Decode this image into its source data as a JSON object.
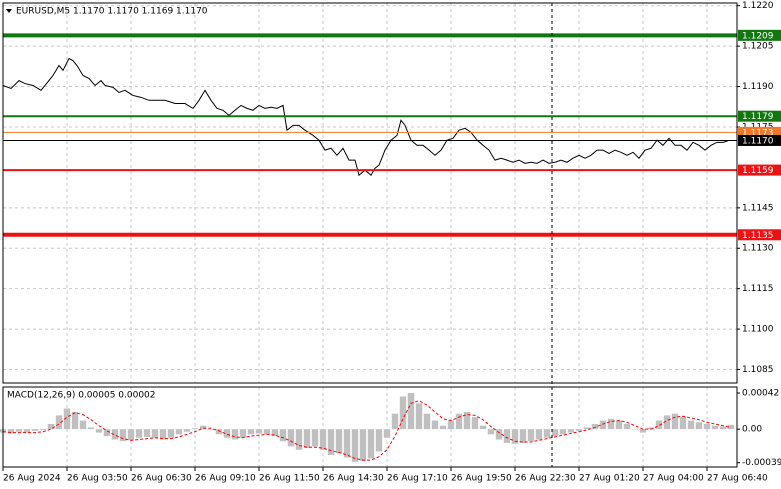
{
  "chart_data": [
    {
      "type": "line",
      "title": "EURUSD,M5  1.1170 1.1170 1.1169 1.1170",
      "x": [
        0,
        4,
        8,
        11,
        15,
        19,
        21,
        25,
        28,
        30,
        33,
        35,
        37,
        40,
        43,
        46,
        49,
        51,
        55,
        58,
        61,
        65,
        69,
        73,
        77,
        81,
        86,
        91,
        95,
        98,
        101,
        104,
        107,
        110,
        113,
        116,
        119,
        122,
        125,
        128,
        131,
        134,
        137,
        140,
        142,
        145,
        148,
        151,
        155,
        158,
        161,
        164,
        167,
        170,
        173,
        176,
        178,
        181,
        184,
        186,
        188,
        191,
        194,
        197,
        199,
        201,
        204,
        207,
        210,
        213,
        216,
        219,
        222,
        225,
        228,
        231,
        234,
        237,
        240,
        243,
        246,
        249,
        252,
        255,
        258,
        261,
        264,
        267,
        270,
        273,
        276,
        279,
        282,
        285,
        288,
        291,
        294,
        297,
        300,
        303,
        306,
        309,
        312,
        315,
        318,
        321,
        324,
        327,
        330,
        333,
        336,
        339,
        342,
        345,
        348,
        351,
        354,
        357,
        360,
        363
      ],
      "series": [
        {
          "color": "#000000",
          "values": [
            1.11904,
            1.11893,
            1.11922,
            1.11911,
            1.11904,
            1.11886,
            1.11904,
            1.11941,
            1.11978,
            1.1196,
            1.12004,
            1.11996,
            1.11978,
            1.11941,
            1.1193,
            1.11904,
            1.11922,
            1.11904,
            1.11897,
            1.11878,
            1.11886,
            1.11867,
            1.1186,
            1.11849,
            1.11849,
            1.11849,
            1.11837,
            1.11837,
            1.11819,
            1.11849,
            1.11886,
            1.11849,
            1.11819,
            1.11812,
            1.11793,
            1.11812,
            1.1183,
            1.11819,
            1.11812,
            1.1183,
            1.11819,
            1.11823,
            1.11819,
            1.1183,
            1.11738,
            1.11756,
            1.11756,
            1.11738,
            1.11719,
            1.11701,
            1.11664,
            1.11671,
            1.11645,
            1.11671,
            1.11627,
            1.11627,
            1.11571,
            1.1159,
            1.11571,
            1.11597,
            1.11608,
            1.11664,
            1.11701,
            1.11719,
            1.11775,
            1.11756,
            1.11701,
            1.11682,
            1.11682,
            1.11664,
            1.11645,
            1.11664,
            1.11701,
            1.11708,
            1.11738,
            1.11745,
            1.1173,
            1.11701,
            1.11682,
            1.11664,
            1.11627,
            1.11634,
            1.11627,
            1.11619,
            1.11627,
            1.11615,
            1.11619,
            1.11615,
            1.11627,
            1.11615,
            1.11619,
            1.11627,
            1.11619,
            1.11634,
            1.11645,
            1.11634,
            1.11645,
            1.11664,
            1.11664,
            1.11652,
            1.11664,
            1.11656,
            1.11645,
            1.11656,
            1.11634,
            1.11664,
            1.11671,
            1.11701,
            1.11682,
            1.11708,
            1.11682,
            1.11682,
            1.11664,
            1.11693,
            1.11682,
            1.11664,
            1.11682,
            1.11693,
            1.11693,
            1.117
          ]
        }
      ],
      "xlim": [
        0,
        367
      ],
      "ylim": [
        1.108,
        1.1221
      ],
      "xticks": [
        {
          "value": 0,
          "label": "26 Aug 2024"
        },
        {
          "value": 32,
          "label": "26 Aug 03:50"
        },
        {
          "value": 64,
          "label": "26 Aug 06:30"
        },
        {
          "value": 96,
          "label": "26 Aug 09:10"
        },
        {
          "value": 128,
          "label": "26 Aug 11:50"
        },
        {
          "value": 160,
          "label": "26 Aug 14:30"
        },
        {
          "value": 192,
          "label": "26 Aug 17:10"
        },
        {
          "value": 224,
          "label": "26 Aug 19:50"
        },
        {
          "value": 256,
          "label": "26 Aug 22:30"
        },
        {
          "value": 288,
          "label": "27 Aug 01:20"
        },
        {
          "value": 320,
          "label": "27 Aug 04:00"
        },
        {
          "value": 352,
          "label": "27 Aug 06:40"
        }
      ],
      "yticks": [
        {
          "value": 1.122,
          "label": "1.1220"
        },
        1.1205,
        {
          "value": 1.119,
          "label": "1.1190"
        },
        1.1175,
        1.1145,
        {
          "value": 1.113,
          "label": "1.1130"
        },
        1.1115,
        {
          "value": 1.11,
          "label": "1.1100"
        },
        1.1085
      ],
      "grid": true,
      "levels": [
        {
          "value": 1.1209,
          "color": "#117711",
          "style": "thick"
        },
        {
          "value": 1.1179,
          "color": "#117711",
          "style": "medium"
        },
        {
          "value": 1.1173,
          "color": "#f07828",
          "style": "thin"
        },
        {
          "value": 1.117,
          "label": "1.1170",
          "color": "#000000",
          "style": "thin"
        },
        {
          "value": 1.1159,
          "color": "#ee1111",
          "style": "medium"
        },
        {
          "value": 1.1135,
          "color": "#ee1111",
          "style": "thick"
        }
      ]
    },
    {
      "type": "macd",
      "title": "MACD(12,26,9) 0.00005 0.00002",
      "x": [
        0,
        4,
        8,
        12,
        16,
        20,
        24,
        28,
        32,
        36,
        40,
        44,
        48,
        52,
        56,
        60,
        64,
        68,
        72,
        76,
        80,
        84,
        88,
        92,
        96,
        100,
        104,
        108,
        112,
        116,
        120,
        124,
        128,
        132,
        136,
        140,
        144,
        148,
        152,
        156,
        160,
        164,
        168,
        172,
        176,
        180,
        184,
        188,
        192,
        196,
        200,
        204,
        208,
        212,
        216,
        220,
        224,
        228,
        232,
        236,
        240,
        244,
        248,
        252,
        256,
        260,
        264,
        268,
        272,
        276,
        280,
        284,
        288,
        292,
        296,
        300,
        304,
        308,
        312,
        316,
        320,
        324,
        328,
        332,
        336,
        340,
        344,
        348,
        352,
        356,
        360,
        364
      ],
      "series": [
        {
          "style": "bar",
          "color": "#c0c0c0",
          "values": [
            -4e-05,
            -5e-05,
            -3e-05,
            -4e-05,
            -2e-05,
            -1e-05,
            6e-05,
            0.00016,
            0.00024,
            0.0002,
            0.0001,
            2e-05,
            -4e-05,
            -8e-05,
            -0.00012,
            -0.00014,
            -0.00013,
            -0.0001,
            -9e-05,
            -0.0001,
            -0.00012,
            -0.0001,
            -6e-05,
            -3e-05,
            1e-05,
            4e-05,
            0,
            -6e-05,
            -0.0001,
            -0.00012,
            -0.0001,
            -6e-05,
            -5e-05,
            -6e-05,
            -8e-05,
            -0.00014,
            -0.0002,
            -0.00024,
            -0.00022,
            -0.0002,
            -0.00024,
            -0.0003,
            -0.00028,
            -0.00033,
            -0.00038,
            -0.00037,
            -0.00034,
            -0.00026,
            -0.0001,
            0.00018,
            0.00038,
            0.00042,
            0.0003,
            0.00018,
            0.0001,
            4e-05,
            0.0001,
            0.00018,
            0.0002,
            0.00014,
            4e-05,
            -6e-05,
            -0.00012,
            -0.00016,
            -0.00017,
            -0.00016,
            -0.00014,
            -0.00012,
            -0.0001,
            -8e-05,
            -6e-05,
            -4e-05,
            -2e-05,
            2e-05,
            6e-05,
            0.0001,
            0.00012,
            0.0001,
            6e-05,
            0,
            -4e-05,
            2e-05,
            0.0001,
            0.00016,
            0.00018,
            0.00014,
            0.0001,
            8e-05,
            6e-05,
            4e-05,
            3e-05,
            5e-05
          ]
        },
        {
          "style": "dashed-line",
          "color": "#ff0000",
          "values": [
            -3e-05,
            -4e-05,
            -4e-05,
            -4e-05,
            -4e-05,
            -3e-05,
            0,
            6e-05,
            0.00014,
            0.00019,
            0.00017,
            0.00011,
            4e-05,
            -2e-05,
            -7e-05,
            -0.00011,
            -0.00013,
            -0.00012,
            -0.00011,
            -0.0001,
            -0.00011,
            -0.00011,
            -9e-05,
            -6e-05,
            -3e-05,
            1e-05,
            1e-05,
            -2e-05,
            -6e-05,
            -9e-05,
            -0.0001,
            -8e-05,
            -7e-05,
            -6e-05,
            -7e-05,
            -0.0001,
            -0.00014,
            -0.00019,
            -0.00021,
            -0.00021,
            -0.00022,
            -0.00025,
            -0.00027,
            -0.0003,
            -0.00034,
            -0.00036,
            -0.00036,
            -0.00032,
            -0.00024,
            -8e-05,
            0.00012,
            0.0003,
            0.00033,
            0.00028,
            0.0002,
            0.00012,
            0.0001,
            0.00014,
            0.00017,
            0.00016,
            0.00011,
            3e-05,
            -4e-05,
            -0.0001,
            -0.00014,
            -0.00015,
            -0.00015,
            -0.00013,
            -0.00011,
            -9e-05,
            -7e-05,
            -5e-05,
            -3e-05,
            -1e-05,
            2e-05,
            6e-05,
            9e-05,
            0.0001,
            8e-05,
            4e-05,
            0,
            0,
            4e-05,
            0.0001,
            0.00014,
            0.00015,
            0.00013,
            0.00011,
            8e-05,
            6e-05,
            4e-05,
            2e-05
          ]
        }
      ],
      "xlim": [
        0,
        367
      ],
      "ylim": [
        -0.00044,
        0.00049
      ],
      "yticks": [
        0.00042,
        {
          "value": 0,
          "label": "0.00"
        },
        -0.00039
      ]
    }
  ]
}
